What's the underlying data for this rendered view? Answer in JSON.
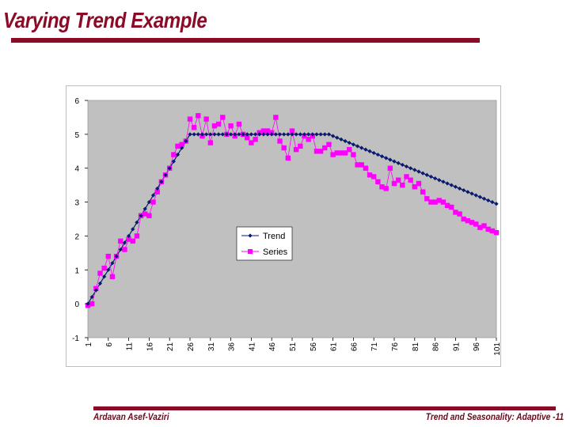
{
  "slide": {
    "title": "Varying Trend Example",
    "footer_left": "Ardavan Asef-Vaziri",
    "footer_right": "Trend and Seasonality: Adaptive -11"
  },
  "chart_data": {
    "type": "line",
    "title": "",
    "xlabel": "",
    "ylabel": "",
    "xlim": [
      1,
      101
    ],
    "ylim": [
      -1,
      6
    ],
    "yticks": [
      -1,
      0,
      1,
      2,
      3,
      4,
      5,
      6
    ],
    "xticks": [
      1,
      6,
      11,
      16,
      21,
      26,
      31,
      36,
      41,
      46,
      51,
      56,
      61,
      66,
      71,
      76,
      81,
      86,
      91,
      96,
      101
    ],
    "grid": false,
    "plot_background": "#c0c0c0",
    "legend_position": "center-left",
    "x": [
      1,
      2,
      3,
      4,
      5,
      6,
      7,
      8,
      9,
      10,
      11,
      12,
      13,
      14,
      15,
      16,
      17,
      18,
      19,
      20,
      21,
      22,
      23,
      24,
      25,
      26,
      27,
      28,
      29,
      30,
      31,
      32,
      33,
      34,
      35,
      36,
      37,
      38,
      39,
      40,
      41,
      42,
      43,
      44,
      45,
      46,
      47,
      48,
      49,
      50,
      51,
      52,
      53,
      54,
      55,
      56,
      57,
      58,
      59,
      60,
      61,
      62,
      63,
      64,
      65,
      66,
      67,
      68,
      69,
      70,
      71,
      72,
      73,
      74,
      75,
      76,
      77,
      78,
      79,
      80,
      81,
      82,
      83,
      84,
      85,
      86,
      87,
      88,
      89,
      90,
      91,
      92,
      93,
      94,
      95,
      96,
      97,
      98,
      99,
      100,
      101
    ],
    "series": [
      {
        "name": "Trend",
        "color": "#0a1a6e",
        "marker": "diamond",
        "values": [
          0.0,
          0.2,
          0.4,
          0.6,
          0.8,
          1.0,
          1.2,
          1.4,
          1.6,
          1.8,
          2.0,
          2.2,
          2.4,
          2.6,
          2.8,
          3.0,
          3.2,
          3.4,
          3.6,
          3.8,
          4.0,
          4.2,
          4.4,
          4.6,
          4.8,
          5.0,
          5.0,
          5.0,
          5.0,
          5.0,
          5.0,
          5.0,
          5.0,
          5.0,
          5.0,
          5.0,
          5.0,
          5.0,
          5.0,
          5.0,
          5.0,
          5.0,
          5.0,
          5.0,
          5.0,
          5.0,
          5.0,
          5.0,
          5.0,
          5.0,
          5.0,
          5.0,
          5.0,
          5.0,
          5.0,
          5.0,
          5.0,
          5.0,
          5.0,
          5.0,
          4.95,
          4.9,
          4.85,
          4.8,
          4.75,
          4.7,
          4.65,
          4.6,
          4.55,
          4.5,
          4.45,
          4.4,
          4.35,
          4.3,
          4.25,
          4.2,
          4.15,
          4.1,
          4.05,
          4.0,
          3.95,
          3.9,
          3.85,
          3.8,
          3.75,
          3.7,
          3.65,
          3.6,
          3.55,
          3.5,
          3.45,
          3.4,
          3.35,
          3.3,
          3.25,
          3.2,
          3.15,
          3.1,
          3.05,
          3.0,
          2.95
        ]
      },
      {
        "name": "Series",
        "color": "#ff00ff",
        "marker": "square",
        "values": [
          -0.05,
          0.0,
          0.45,
          0.9,
          1.05,
          1.4,
          0.8,
          1.4,
          1.85,
          1.6,
          1.9,
          1.85,
          2.0,
          2.6,
          2.65,
          2.6,
          3.0,
          3.3,
          3.6,
          3.8,
          4.0,
          4.4,
          4.65,
          4.7,
          4.8,
          5.45,
          5.2,
          5.55,
          4.95,
          5.45,
          4.75,
          5.25,
          5.3,
          5.5,
          5.0,
          5.25,
          4.95,
          5.3,
          5.0,
          4.9,
          4.75,
          4.85,
          5.05,
          5.1,
          5.1,
          5.05,
          5.5,
          4.8,
          4.6,
          4.3,
          5.1,
          4.55,
          4.65,
          4.95,
          4.85,
          4.95,
          4.5,
          4.5,
          4.6,
          4.7,
          4.4,
          4.45,
          4.45,
          4.45,
          4.55,
          4.4,
          4.1,
          4.1,
          4.0,
          3.8,
          3.75,
          3.6,
          3.45,
          3.4,
          4.0,
          3.55,
          3.65,
          3.5,
          3.75,
          3.65,
          3.45,
          3.55,
          3.3,
          3.1,
          3.0,
          3.0,
          3.05,
          3.0,
          2.9,
          2.85,
          2.7,
          2.65,
          2.5,
          2.45,
          2.4,
          2.35,
          2.25,
          2.3,
          2.2,
          2.15,
          2.1
        ]
      }
    ]
  }
}
